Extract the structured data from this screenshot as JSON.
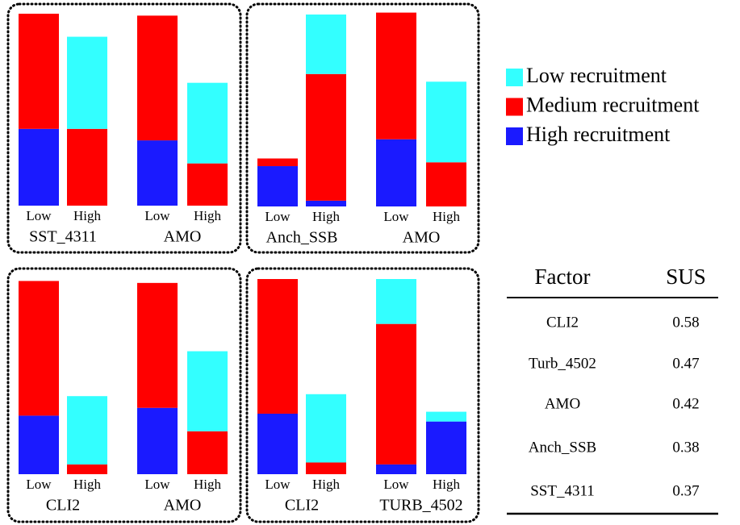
{
  "legend": [
    {
      "name": "Low recruitment",
      "color": "#33ffff"
    },
    {
      "name": "Medium recruitment",
      "color": "#ff0000"
    },
    {
      "name": "High recruitment",
      "color": "#1a1aff"
    }
  ],
  "chart_data": [
    {
      "type": "bar",
      "stacked": true,
      "ylim": [
        0,
        100
      ],
      "categories": [
        "Low",
        "High",
        "Low",
        "High"
      ],
      "groups": [
        "SST_4311",
        "AMO"
      ],
      "series": [
        {
          "values": [
            null,
            48,
            null,
            42
          ]
        },
        {
          "values": [
            60,
            40,
            65,
            22
          ]
        },
        {
          "values": [
            40,
            null,
            34,
            null
          ]
        }
      ]
    },
    {
      "type": "bar",
      "stacked": true,
      "ylim": [
        0,
        100
      ],
      "categories": [
        "Low",
        "High",
        "Low",
        "High"
      ],
      "groups": [
        "Anch_SSB",
        "AMO"
      ],
      "series": [
        {
          "values": [
            null,
            31,
            null,
            42
          ]
        },
        {
          "values": [
            4,
            66,
            66,
            23
          ]
        },
        {
          "values": [
            21,
            3,
            35,
            null
          ]
        }
      ]
    },
    {
      "type": "bar",
      "stacked": true,
      "ylim": [
        0,
        100
      ],
      "categories": [
        "Low",
        "High",
        "Low",
        "High"
      ],
      "groups": [
        "CLI2",
        "AMO"
      ],
      "series": [
        {
          "values": [
            null,
            35,
            null,
            41
          ]
        },
        {
          "values": [
            69,
            5,
            64,
            22
          ]
        },
        {
          "values": [
            30,
            null,
            34,
            null
          ]
        }
      ]
    },
    {
      "type": "bar",
      "stacked": true,
      "ylim": [
        0,
        100
      ],
      "categories": [
        "Low",
        "High",
        "Low",
        "High"
      ],
      "groups": [
        "CLI2",
        "TURB_4502"
      ],
      "series": [
        {
          "values": [
            null,
            35,
            23,
            5
          ]
        },
        {
          "values": [
            69,
            6,
            72,
            null
          ]
        },
        {
          "values": [
            31,
            null,
            5,
            27
          ]
        }
      ]
    }
  ],
  "table": {
    "columns": [
      "Factor",
      "SUS"
    ],
    "rows": [
      [
        "CLI2",
        "0.58"
      ],
      [
        "Turb_4502",
        "0.47"
      ],
      [
        "AMO",
        "0.42"
      ],
      [
        "Anch_SSB",
        "0.38"
      ],
      [
        "SST_4311",
        "0.37"
      ]
    ]
  }
}
